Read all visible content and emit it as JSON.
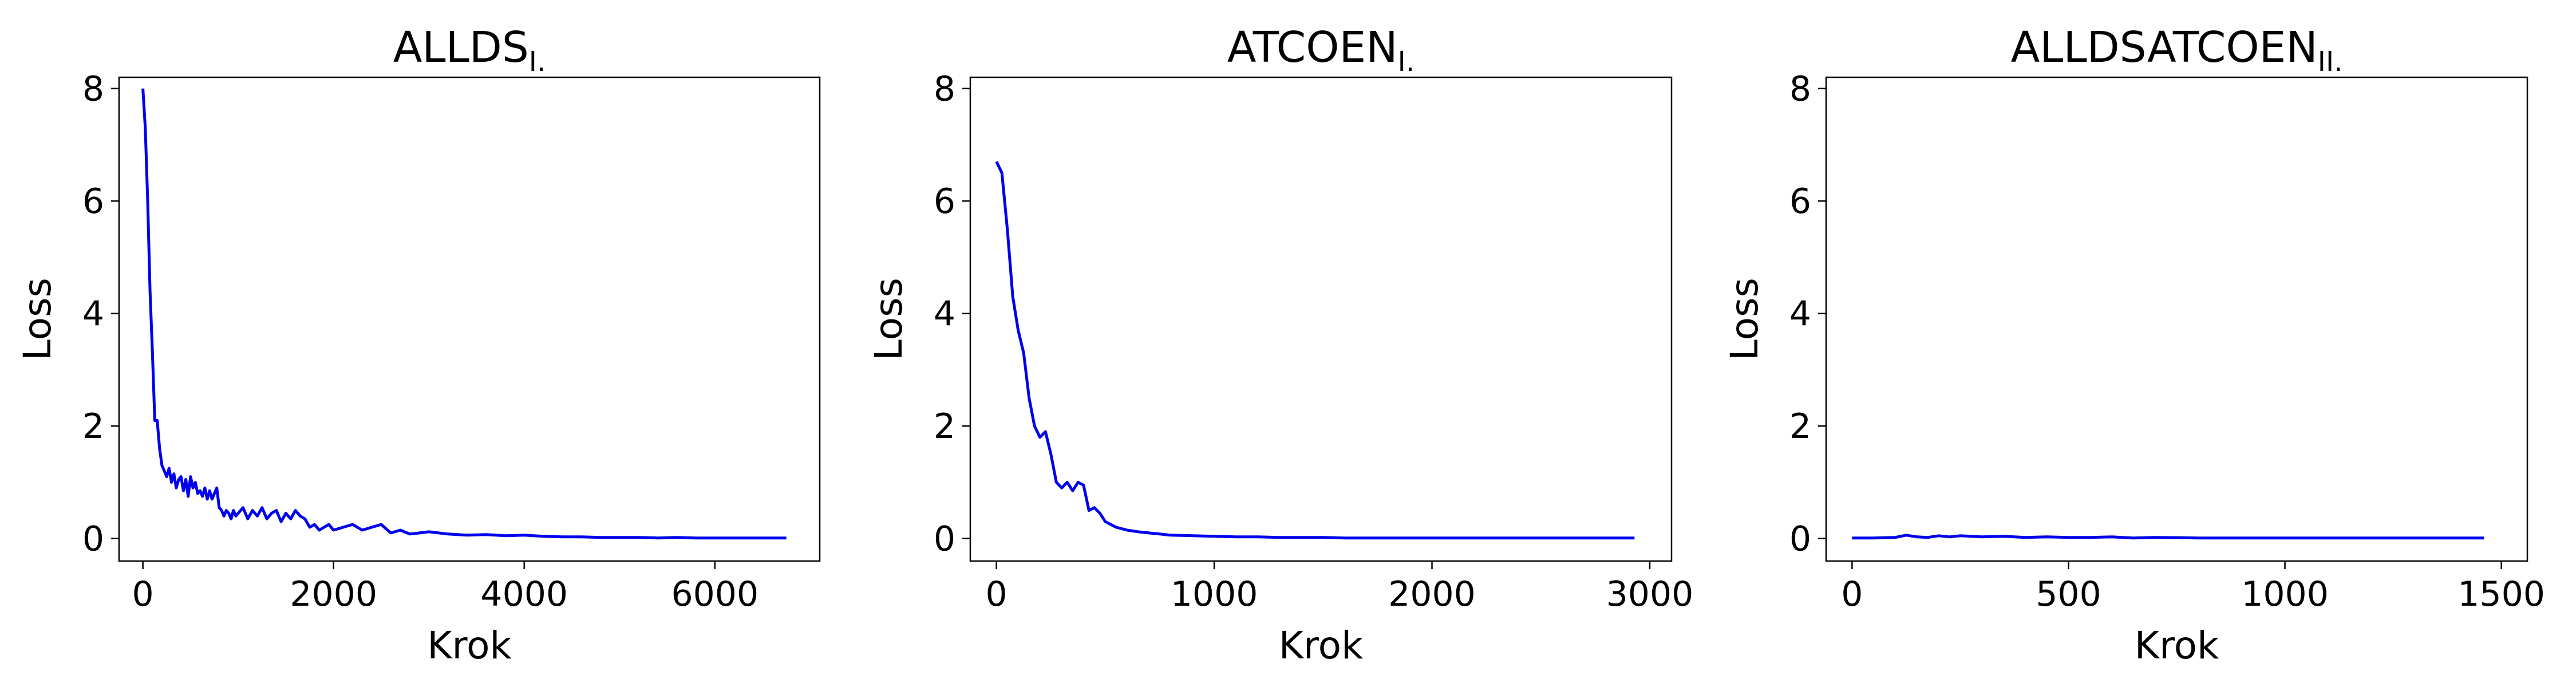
{
  "chart_data": [
    {
      "type": "line",
      "title": "ALLDS",
      "title_subscript": "I.",
      "xlabel": "Krok",
      "ylabel": "Loss",
      "xlim": [
        -250,
        7100
      ],
      "ylim": [
        -0.4,
        8.2
      ],
      "xticks": [
        0,
        2000,
        4000,
        6000
      ],
      "yticks": [
        0,
        2,
        4,
        6,
        8
      ],
      "color": "#0000ee",
      "series": [
        {
          "x": [
            0,
            25,
            50,
            75,
            100,
            125,
            150,
            175,
            200,
            225,
            250,
            275,
            300,
            325,
            350,
            375,
            400,
            425,
            450,
            475,
            500,
            525,
            550,
            575,
            600,
            625,
            650,
            675,
            700,
            725,
            750,
            775,
            800,
            825,
            850,
            875,
            900,
            925,
            950,
            975,
            1000,
            1050,
            1100,
            1150,
            1200,
            1250,
            1300,
            1350,
            1400,
            1450,
            1500,
            1550,
            1600,
            1650,
            1700,
            1750,
            1800,
            1850,
            1900,
            1950,
            2000,
            2100,
            2200,
            2300,
            2400,
            2500,
            2600,
            2700,
            2800,
            2900,
            3000,
            3200,
            3400,
            3600,
            3800,
            4000,
            4200,
            4400,
            4600,
            4800,
            5000,
            5200,
            5400,
            5600,
            5800,
            6000,
            6200,
            6400,
            6600,
            6750
          ],
          "y": [
            8.0,
            7.3,
            6.0,
            4.4,
            3.3,
            2.1,
            2.1,
            1.6,
            1.3,
            1.2,
            1.1,
            1.25,
            1.0,
            1.15,
            0.9,
            1.05,
            1.1,
            0.85,
            1.05,
            0.75,
            1.1,
            0.9,
            1.0,
            0.8,
            0.85,
            0.75,
            0.9,
            0.7,
            0.85,
            0.7,
            0.8,
            0.9,
            0.55,
            0.5,
            0.4,
            0.5,
            0.45,
            0.35,
            0.5,
            0.4,
            0.45,
            0.55,
            0.35,
            0.5,
            0.4,
            0.55,
            0.35,
            0.45,
            0.5,
            0.3,
            0.45,
            0.35,
            0.5,
            0.4,
            0.35,
            0.2,
            0.25,
            0.15,
            0.2,
            0.25,
            0.15,
            0.2,
            0.25,
            0.15,
            0.2,
            0.25,
            0.1,
            0.15,
            0.08,
            0.1,
            0.12,
            0.08,
            0.06,
            0.07,
            0.05,
            0.06,
            0.04,
            0.03,
            0.03,
            0.02,
            0.02,
            0.02,
            0.01,
            0.02,
            0.01,
            0.01,
            0.01,
            0.01,
            0.01,
            0.01
          ]
        }
      ]
    },
    {
      "type": "line",
      "title": "ATCOEN",
      "title_subscript": "I.",
      "xlabel": "Krok",
      "ylabel": "Loss",
      "xlim": [
        -120,
        3100
      ],
      "ylim": [
        -0.4,
        8.2
      ],
      "xticks": [
        0,
        1000,
        2000,
        3000
      ],
      "yticks": [
        0,
        2,
        4,
        6,
        8
      ],
      "color": "#0000ee",
      "series": [
        {
          "x": [
            0,
            25,
            50,
            75,
            100,
            125,
            150,
            175,
            200,
            225,
            250,
            275,
            300,
            325,
            350,
            375,
            400,
            425,
            450,
            475,
            500,
            550,
            600,
            650,
            700,
            750,
            800,
            900,
            1000,
            1100,
            1200,
            1300,
            1400,
            1500,
            1600,
            1700,
            1800,
            1900,
            2000,
            2200,
            2400,
            2600,
            2800,
            2930
          ],
          "y": [
            6.7,
            6.5,
            5.5,
            4.3,
            3.7,
            3.3,
            2.5,
            2.0,
            1.8,
            1.9,
            1.5,
            1.0,
            0.9,
            1.0,
            0.85,
            1.0,
            0.95,
            0.5,
            0.55,
            0.45,
            0.3,
            0.2,
            0.15,
            0.12,
            0.1,
            0.08,
            0.06,
            0.05,
            0.04,
            0.03,
            0.03,
            0.02,
            0.02,
            0.02,
            0.01,
            0.01,
            0.01,
            0.01,
            0.01,
            0.01,
            0.01,
            0.01,
            0.01,
            0.01
          ]
        }
      ]
    },
    {
      "type": "line",
      "title": "ALLDSATCOEN",
      "title_subscript": "II.",
      "xlabel": "Krok",
      "ylabel": "Loss",
      "xlim": [
        -60,
        1560
      ],
      "ylim": [
        -0.4,
        8.2
      ],
      "xticks": [
        0,
        500,
        1000,
        1500
      ],
      "yticks": [
        0,
        2,
        4,
        6,
        8
      ],
      "color": "#0000ee",
      "series": [
        {
          "x": [
            0,
            50,
            100,
            125,
            150,
            175,
            200,
            225,
            250,
            275,
            300,
            350,
            400,
            450,
            500,
            550,
            600,
            650,
            700,
            800,
            900,
            1000,
            1100,
            1200,
            1300,
            1400,
            1460
          ],
          "y": [
            0.01,
            0.01,
            0.02,
            0.06,
            0.03,
            0.02,
            0.05,
            0.03,
            0.05,
            0.04,
            0.03,
            0.04,
            0.02,
            0.03,
            0.02,
            0.02,
            0.03,
            0.01,
            0.02,
            0.01,
            0.01,
            0.01,
            0.01,
            0.01,
            0.01,
            0.01,
            0.01
          ]
        }
      ]
    }
  ]
}
